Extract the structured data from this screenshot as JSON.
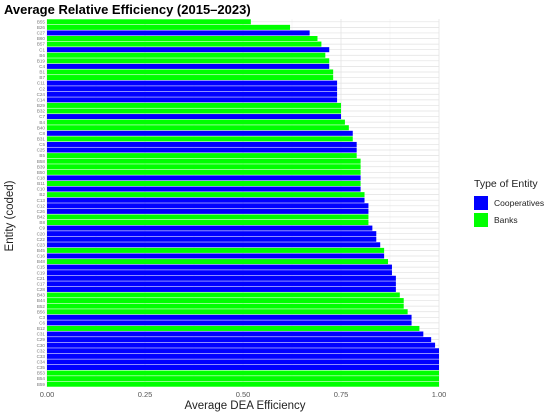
{
  "chart_data": {
    "type": "bar",
    "orientation": "horizontal",
    "title": "Average Relative Efficiency (2015–2023)",
    "xlabel": "Average DEA Efficiency",
    "ylabel": "Entity (coded)",
    "xlim": [
      0,
      1
    ],
    "x_ticks": [
      "0.00",
      "0.25",
      "0.50",
      "0.75",
      "1.00"
    ],
    "grid": true,
    "legend": {
      "title": "Type of Entity",
      "position": "right",
      "entries": [
        {
          "name": "Cooperatives",
          "color": "#0000ff"
        },
        {
          "name": "Banks",
          "color": "#00ff00"
        }
      ]
    },
    "colors": {
      "Cooperatives": "#0000ff",
      "Banks": "#00ff00"
    },
    "bars": [
      {
        "entity": "B55",
        "type": "Banks",
        "value": 0.52
      },
      {
        "entity": "B26",
        "type": "Banks",
        "value": 0.62
      },
      {
        "entity": "C27",
        "type": "Cooperatives",
        "value": 0.67
      },
      {
        "entity": "B60",
        "type": "Banks",
        "value": 0.69
      },
      {
        "entity": "B57",
        "type": "Banks",
        "value": 0.7
      },
      {
        "entity": "C1",
        "type": "Cooperatives",
        "value": 0.72
      },
      {
        "entity": "B6",
        "type": "Banks",
        "value": 0.71
      },
      {
        "entity": "B19",
        "type": "Banks",
        "value": 0.72
      },
      {
        "entity": "C4",
        "type": "Cooperatives",
        "value": 0.72
      },
      {
        "entity": "B1",
        "type": "Banks",
        "value": 0.73
      },
      {
        "entity": "B7",
        "type": "Banks",
        "value": 0.73
      },
      {
        "entity": "C11",
        "type": "Cooperatives",
        "value": 0.74
      },
      {
        "entity": "C2",
        "type": "Cooperatives",
        "value": 0.74
      },
      {
        "entity": "C24",
        "type": "Cooperatives",
        "value": 0.74
      },
      {
        "entity": "C14",
        "type": "Cooperatives",
        "value": 0.74
      },
      {
        "entity": "B29",
        "type": "Banks",
        "value": 0.75
      },
      {
        "entity": "B32",
        "type": "Banks",
        "value": 0.75
      },
      {
        "entity": "C7",
        "type": "Cooperatives",
        "value": 0.75
      },
      {
        "entity": "B4",
        "type": "Banks",
        "value": 0.76
      },
      {
        "entity": "B40",
        "type": "Banks",
        "value": 0.77
      },
      {
        "entity": "C8",
        "type": "Cooperatives",
        "value": 0.78
      },
      {
        "entity": "B31",
        "type": "Banks",
        "value": 0.78
      },
      {
        "entity": "C5",
        "type": "Cooperatives",
        "value": 0.79
      },
      {
        "entity": "C25",
        "type": "Cooperatives",
        "value": 0.79
      },
      {
        "entity": "B5",
        "type": "Banks",
        "value": 0.79
      },
      {
        "entity": "B58",
        "type": "Banks",
        "value": 0.8
      },
      {
        "entity": "B39",
        "type": "Banks",
        "value": 0.8
      },
      {
        "entity": "B50",
        "type": "Banks",
        "value": 0.8
      },
      {
        "entity": "C18",
        "type": "Cooperatives",
        "value": 0.8
      },
      {
        "entity": "B11",
        "type": "Banks",
        "value": 0.8
      },
      {
        "entity": "C10",
        "type": "Cooperatives",
        "value": 0.8
      },
      {
        "entity": "B2",
        "type": "Banks",
        "value": 0.81
      },
      {
        "entity": "C13",
        "type": "Cooperatives",
        "value": 0.81
      },
      {
        "entity": "C12",
        "type": "Cooperatives",
        "value": 0.82
      },
      {
        "entity": "C26",
        "type": "Cooperatives",
        "value": 0.82
      },
      {
        "entity": "B42",
        "type": "Banks",
        "value": 0.82
      },
      {
        "entity": "B8",
        "type": "Banks",
        "value": 0.82
      },
      {
        "entity": "C9",
        "type": "Cooperatives",
        "value": 0.83
      },
      {
        "entity": "C20",
        "type": "Cooperatives",
        "value": 0.84
      },
      {
        "entity": "C22",
        "type": "Cooperatives",
        "value": 0.84
      },
      {
        "entity": "C23",
        "type": "Cooperatives",
        "value": 0.85
      },
      {
        "entity": "B45",
        "type": "Banks",
        "value": 0.86
      },
      {
        "entity": "C16",
        "type": "Cooperatives",
        "value": 0.86
      },
      {
        "entity": "B48",
        "type": "Banks",
        "value": 0.87
      },
      {
        "entity": "C15",
        "type": "Cooperatives",
        "value": 0.88
      },
      {
        "entity": "C19",
        "type": "Cooperatives",
        "value": 0.88
      },
      {
        "entity": "C21",
        "type": "Cooperatives",
        "value": 0.89
      },
      {
        "entity": "C17",
        "type": "Cooperatives",
        "value": 0.89
      },
      {
        "entity": "C28",
        "type": "Cooperatives",
        "value": 0.89
      },
      {
        "entity": "B43",
        "type": "Banks",
        "value": 0.9
      },
      {
        "entity": "B44",
        "type": "Banks",
        "value": 0.91
      },
      {
        "entity": "B52",
        "type": "Banks",
        "value": 0.91
      },
      {
        "entity": "B56",
        "type": "Banks",
        "value": 0.92
      },
      {
        "entity": "C3",
        "type": "Cooperatives",
        "value": 0.93
      },
      {
        "entity": "C6",
        "type": "Cooperatives",
        "value": 0.93
      },
      {
        "entity": "B12",
        "type": "Banks",
        "value": 0.95
      },
      {
        "entity": "C31",
        "type": "Cooperatives",
        "value": 0.96
      },
      {
        "entity": "C29",
        "type": "Cooperatives",
        "value": 0.98
      },
      {
        "entity": "C30",
        "type": "Cooperatives",
        "value": 0.99
      },
      {
        "entity": "C32",
        "type": "Cooperatives",
        "value": 1.0
      },
      {
        "entity": "C33",
        "type": "Cooperatives",
        "value": 1.0
      },
      {
        "entity": "C34",
        "type": "Cooperatives",
        "value": 1.0
      },
      {
        "entity": "C35",
        "type": "Cooperatives",
        "value": 1.0
      },
      {
        "entity": "B53",
        "type": "Banks",
        "value": 1.0
      },
      {
        "entity": "B54",
        "type": "Banks",
        "value": 1.0
      },
      {
        "entity": "B59",
        "type": "Banks",
        "value": 1.0
      }
    ]
  }
}
